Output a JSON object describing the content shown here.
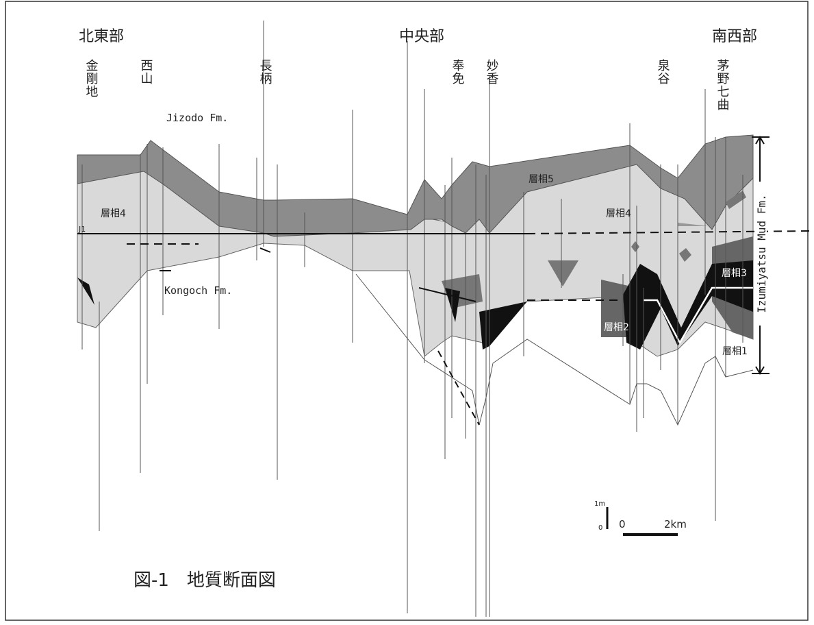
{
  "regions": [
    "北東部",
    "中央部",
    "南西部"
  ],
  "sites": [
    "金剛地",
    "西山",
    "長柄",
    "奉免",
    "妙香",
    "泉谷",
    "茅野七曲"
  ],
  "formations": {
    "upper": "Jizodo Fm.",
    "lower": "Kongoch Fm.",
    "main": "Izumiyatsu Mud Fm."
  },
  "facies": {
    "f5": "層相5",
    "f4_left": "層相4",
    "f4_right": "層相4",
    "f3": "層相3",
    "f2": "層相2",
    "f1": "層相1"
  },
  "marker": "J1",
  "scale": {
    "vertical_unit": "1m",
    "vertical_zero": "0",
    "horizontal_zero": "0",
    "horizontal_unit": "2km"
  },
  "caption": "図-1　地質断面図"
}
